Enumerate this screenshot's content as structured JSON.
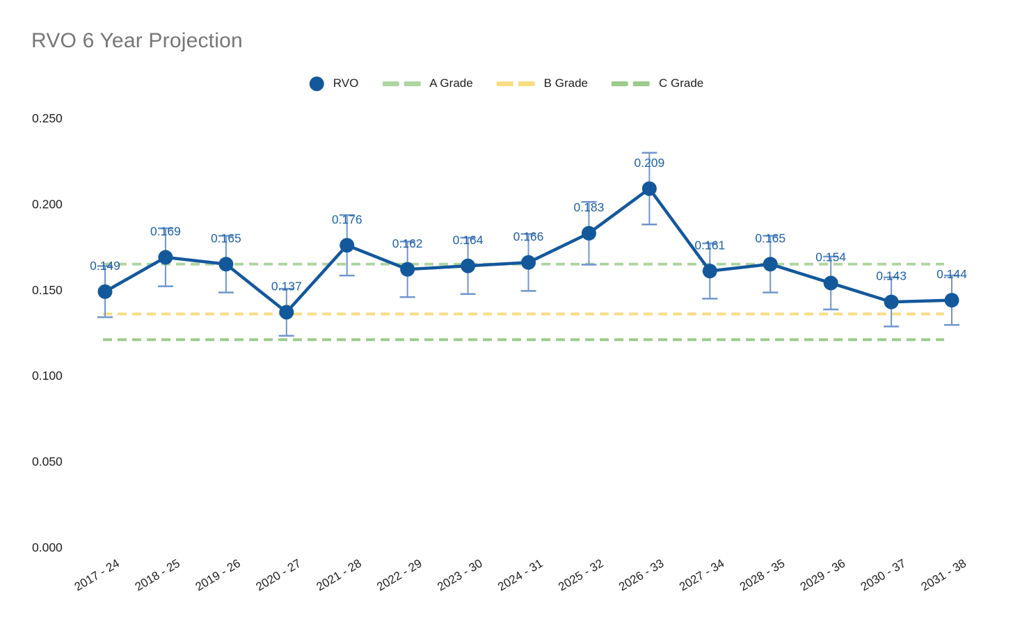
{
  "header": {
    "title": "RVO 6 Year Projection"
  },
  "legend": {
    "items": [
      {
        "label": "RVO",
        "swatch": "circle",
        "color": "#14589c"
      },
      {
        "label": "A Grade",
        "swatch": "dash",
        "color": "#afd5a0"
      },
      {
        "label": "B Grade",
        "swatch": "dash",
        "color": "#f9dd85"
      },
      {
        "label": "C Grade",
        "swatch": "dash",
        "color": "#9ccb8b"
      }
    ]
  },
  "chart_data": {
    "type": "line",
    "title": "RVO 6 Year Projection",
    "categories": [
      "2017 - 24",
      "2018 - 25",
      "2019 - 26",
      "2020 - 27",
      "2021 - 28",
      "2022 - 29",
      "2023 - 30",
      "2024 - 31",
      "2025 - 32",
      "2026 - 33",
      "2027 - 34",
      "2028 - 35",
      "2029 - 36",
      "2030 - 37",
      "2031 - 38"
    ],
    "series": [
      {
        "name": "RVO",
        "color": "#14589c",
        "values": [
          0.149,
          0.169,
          0.165,
          0.137,
          0.176,
          0.162,
          0.164,
          0.166,
          0.183,
          0.209,
          0.161,
          0.165,
          0.154,
          0.143,
          0.144
        ],
        "point_labels": [
          "0.149",
          "0.169",
          "0.165",
          "0.137",
          "0.176",
          "0.162",
          "0.164",
          "0.166",
          "0.183",
          "0.209",
          "0.161",
          "0.165",
          "0.154",
          "0.143",
          "0.144"
        ],
        "error_bars": "approx ±10% of value"
      }
    ],
    "reference_lines": [
      {
        "name": "A Grade",
        "value": 0.165,
        "color": "#afd5a0",
        "style": "dashed"
      },
      {
        "name": "B Grade",
        "value": 0.136,
        "color": "#f9dd85",
        "style": "dashed"
      },
      {
        "name": "C Grade",
        "value": 0.121,
        "color": "#9ccb8b",
        "style": "dashed"
      }
    ],
    "y_axis": {
      "tick_labels": [
        "0.000",
        "0.050",
        "0.100",
        "0.150",
        "0.200",
        "0.250"
      ],
      "tick_values": [
        0,
        0.05,
        0.1,
        0.15,
        0.2,
        0.25
      ],
      "range": [
        0,
        0.25
      ]
    },
    "x_axis": {
      "label_rotation_deg": -31
    },
    "legend_position": "top-center",
    "grid": false
  },
  "colors": {
    "series_blue": "#14589c",
    "error_bar_blue": "#6e96cc",
    "data_label_blue": "#1f60a8",
    "title_gray": "#767676",
    "axis_text": "#212121",
    "a_grade_green": "#afd5a0",
    "b_grade_yellow": "#f9dd85",
    "c_grade_green": "#9ccb8b",
    "background": "#ffffff"
  }
}
